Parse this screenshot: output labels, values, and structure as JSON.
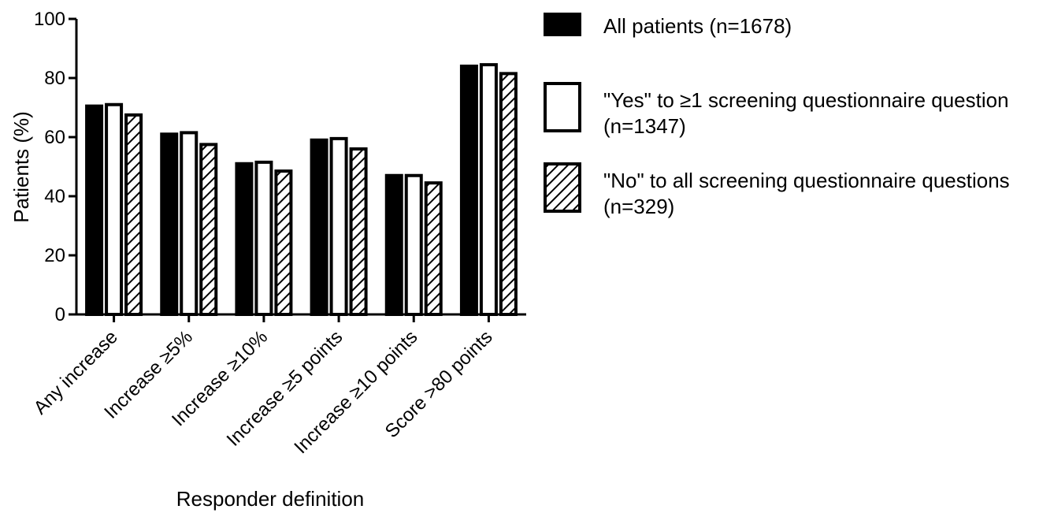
{
  "chart_data": {
    "type": "bar",
    "title": "",
    "xlabel": "Responder definition",
    "ylabel": "Patients (%)",
    "ylim": [
      0,
      100
    ],
    "yticks": [
      "0",
      "20",
      "40",
      "60",
      "80",
      "100"
    ],
    "categories": [
      "Any increase",
      "Increase ≥5%",
      "Increase ≥10%",
      "Increase ≥5 points",
      "Increase ≥10 points",
      "Score >80 points"
    ],
    "series": [
      {
        "name": "All patients (n=1678)",
        "legend_lines": [
          "All patients (n=1678)"
        ],
        "fill": "solid",
        "color": "#000000",
        "values": [
          70.5,
          61,
          51,
          59,
          47,
          84
        ]
      },
      {
        "name": "\"Yes\" to ≥1 screening questionnaire question (n=1347)",
        "legend_lines": [
          "\"Yes\" to ≥1 screening questionnaire question",
          "(n=1347)"
        ],
        "fill": "white",
        "color": "#ffffff",
        "values": [
          71,
          61.5,
          51.5,
          59.5,
          47,
          84.5
        ]
      },
      {
        "name": "\"No\" to all screening questionnaire questions (n=329)",
        "legend_lines": [
          "\"No\" to all screening questionnaire questions",
          "(n=329)"
        ],
        "fill": "hatched",
        "color": "#000000",
        "values": [
          67.5,
          57.5,
          48.5,
          56,
          44.5,
          81.5
        ]
      }
    ],
    "legend_position": "right",
    "grid": false
  }
}
